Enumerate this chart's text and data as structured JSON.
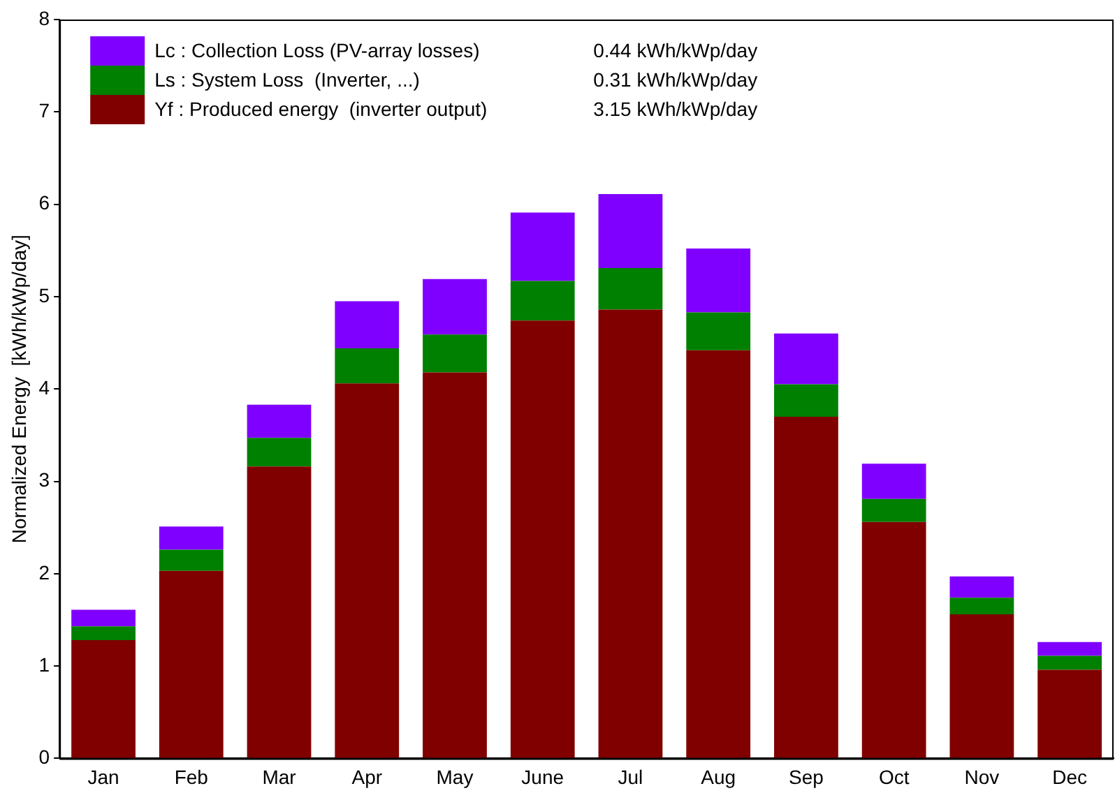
{
  "chart_data": {
    "type": "bar",
    "stacked": true,
    "ylabel": "Normalized Energy  [kWh/kWp/day]",
    "categories": [
      "Jan",
      "Feb",
      "Mar",
      "Apr",
      "May",
      "June",
      "Jul",
      "Aug",
      "Sep",
      "Oct",
      "Nov",
      "Dec"
    ],
    "series": [
      {
        "name": "Yf : Produced energy  (inverter output)",
        "color": "#800000",
        "values": [
          1.28,
          2.03,
          3.16,
          4.06,
          4.18,
          4.74,
          4.86,
          4.42,
          3.7,
          2.56,
          1.56,
          0.96
        ]
      },
      {
        "name": "Ls : System Loss  (Inverter, ...)",
        "color": "#008000",
        "values": [
          0.15,
          0.23,
          0.31,
          0.38,
          0.41,
          0.43,
          0.45,
          0.41,
          0.35,
          0.25,
          0.18,
          0.15
        ]
      },
      {
        "name": "Lc : Collection Loss (PV-array losses)",
        "color": "#8000ff",
        "values": [
          0.18,
          0.25,
          0.36,
          0.51,
          0.6,
          0.74,
          0.8,
          0.69,
          0.55,
          0.38,
          0.23,
          0.15
        ]
      }
    ],
    "annotations": [
      "3.15 kWh/kWp/day",
      "0.31 kWh/kWp/day",
      "0.44 kWh/kWp/day"
    ],
    "ylim": [
      0,
      8
    ],
    "yticks": [
      0,
      1,
      2,
      3,
      4,
      5,
      6,
      7,
      8
    ],
    "grid": false,
    "legend": "top left"
  }
}
